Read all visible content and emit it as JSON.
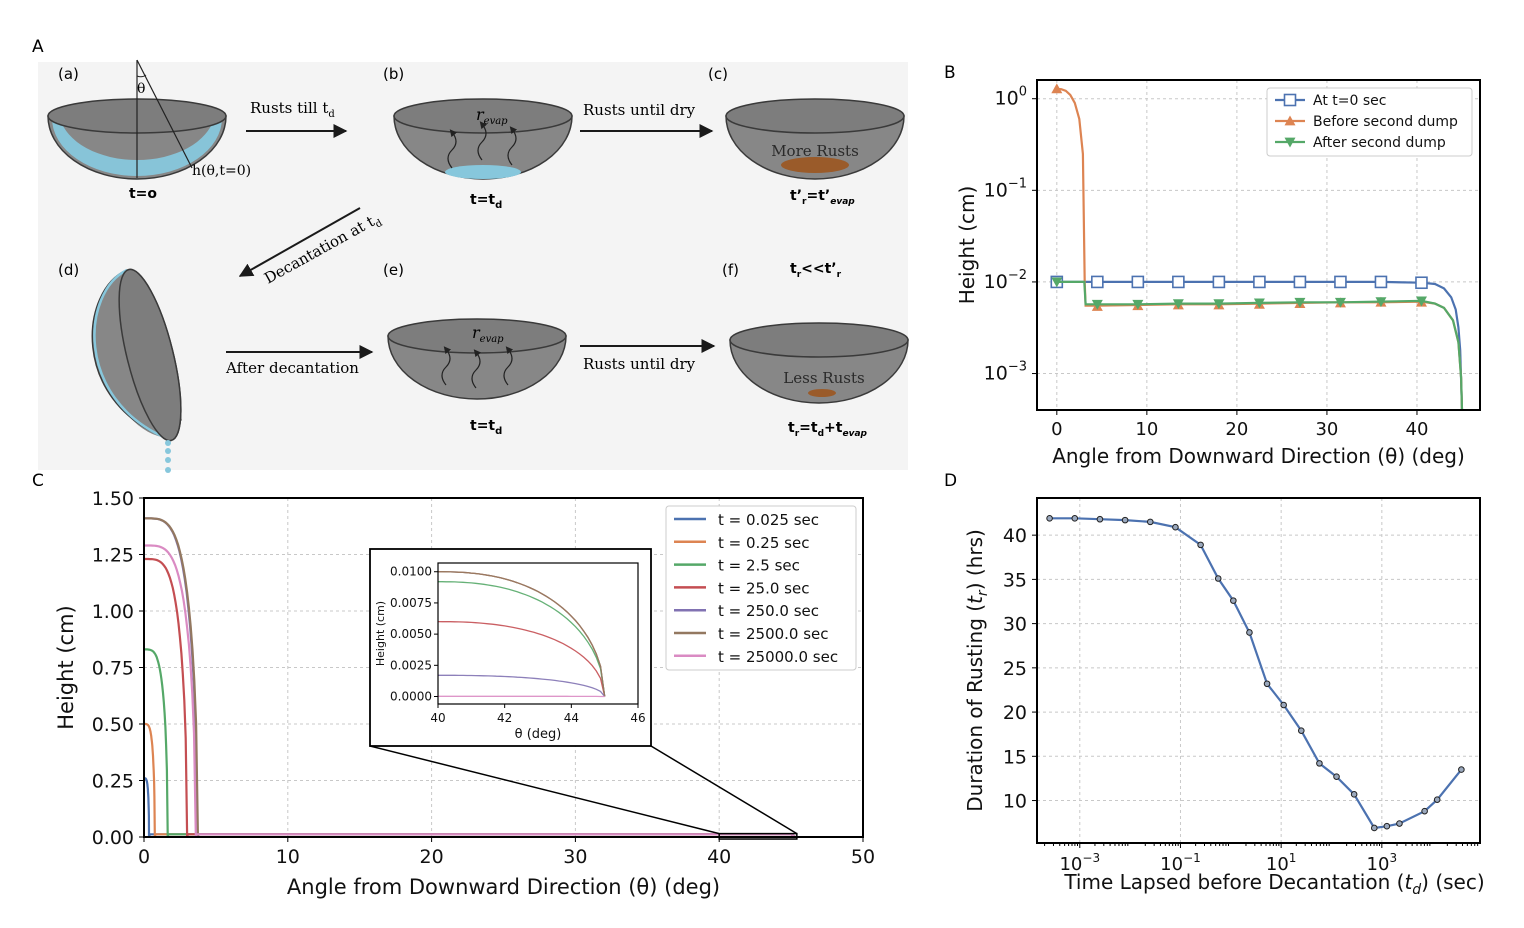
{
  "panels": {
    "A": {
      "letter": "A",
      "labels": {
        "a": "(a)",
        "b": "(b)",
        "c": "(c)",
        "d": "(d)",
        "e": "(e)",
        "f": "(f)"
      },
      "theta_symbol": "θ",
      "h_label": "h(θ,t=0)",
      "arrows": {
        "rusts_till": "Rusts till t",
        "rusts_till_sub": "d",
        "rusts_until_dry_1": "Rusts until dry",
        "decantation": "Decantation at t",
        "decantation_sub": "d",
        "after_decantation": "After decantation",
        "rusts_until_dry_2": "Rusts until dry"
      },
      "bowls": {
        "a_time": "t=o",
        "b_time_main": "t=t",
        "b_time_sub": "d",
        "b_inside_main": "r",
        "b_inside_sub": "evap",
        "c_inside": "More Rusts",
        "c_time_p1": "t’",
        "c_time_s1": "r",
        "c_time_p2": "=t’",
        "c_time_s2": "evap",
        "e_inside_main": "r",
        "e_inside_sub": "evap",
        "e_time_main": "t=t",
        "e_time_sub": "d",
        "f_compare_p1": "t",
        "f_compare_s1": "r",
        "f_compare_p2": "<<t’",
        "f_compare_s2": "r",
        "f_inside": "Less Rusts",
        "f_time_p1": "t",
        "f_time_s1": "r",
        "f_time_p2": "=t",
        "f_time_s2": "d",
        "f_time_p3": "+t",
        "f_time_s3": "evap"
      }
    },
    "B": {
      "letter": "B"
    },
    "C": {
      "letter": "C"
    },
    "D": {
      "letter": "D"
    }
  },
  "colors": {
    "blue": "#4c72b0",
    "orange": "#dd8452",
    "green": "#55a868",
    "red": "#c44e52",
    "purple": "#8172b2",
    "brown": "#937860",
    "pink": "#da8bc3",
    "water": "#87c7dc",
    "bowl": "#878787",
    "rust": "#9a5b2a"
  },
  "chart_data": [
    {
      "id": "B",
      "type": "line",
      "yscale": "log",
      "title": "",
      "xlabel": "Angle from Downward Direction (θ) (deg)",
      "ylabel": "Height (cm)",
      "xlim": [
        -2.2,
        47
      ],
      "ylim": [
        0.0004,
        1.6
      ],
      "xticks": [
        0,
        10,
        20,
        30,
        40
      ],
      "xtick_labels": [
        "0",
        "10",
        "20",
        "30",
        "40"
      ],
      "yticks": [
        1,
        0.1,
        0.01,
        0.001
      ],
      "ytick_labels": [
        {
          "base": "10",
          "exp": "0"
        },
        {
          "base": "10",
          "exp": "−1"
        },
        {
          "base": "10",
          "exp": "−2"
        },
        {
          "base": "10",
          "exp": "−3"
        }
      ],
      "legend_position": "top-right",
      "series": [
        {
          "name": "At t=0 sec",
          "color": "#4c72b0",
          "marker": "square",
          "x": [
            0,
            4.5,
            9,
            13.5,
            18,
            22.5,
            27,
            31.5,
            36,
            40.5,
            42,
            43,
            43.8,
            44.3,
            44.6,
            44.8,
            45
          ],
          "y": [
            0.01,
            0.01,
            0.01,
            0.01,
            0.01,
            0.01,
            0.01,
            0.01,
            0.01,
            0.0098,
            0.0095,
            0.0085,
            0.0068,
            0.005,
            0.0032,
            0.0018,
            0.0004
          ],
          "marker_x": [
            0,
            4.5,
            9,
            13.5,
            18,
            22.5,
            27,
            31.5,
            36,
            40.5
          ],
          "marker_y": [
            0.01,
            0.01,
            0.01,
            0.01,
            0.01,
            0.01,
            0.01,
            0.01,
            0.01,
            0.0098
          ]
        },
        {
          "name": "Before second dump",
          "color": "#dd8452",
          "marker": "triangle-up",
          "x": [
            0,
            0.5,
            1.0,
            1.5,
            2.0,
            2.5,
            2.9,
            3.1,
            3.2,
            4.5,
            9,
            13.5,
            18,
            22.5,
            27,
            31.5,
            36,
            40.5,
            42,
            43,
            44,
            44.6,
            44.9,
            45
          ],
          "y": [
            1.28,
            1.27,
            1.22,
            1.1,
            0.9,
            0.6,
            0.25,
            0.01,
            0.0055,
            0.0055,
            0.0056,
            0.0057,
            0.0057,
            0.0058,
            0.0059,
            0.006,
            0.006,
            0.0061,
            0.0058,
            0.0052,
            0.0038,
            0.0022,
            0.0009,
            0.0004
          ],
          "marker_x": [
            0,
            4.5,
            9,
            13.5,
            18,
            22.5,
            27,
            31.5,
            36,
            40.5
          ],
          "marker_y": [
            1.28,
            0.0054,
            0.0055,
            0.0056,
            0.0056,
            0.0057,
            0.0058,
            0.0059,
            0.006,
            0.006
          ]
        },
        {
          "name": "After second dump",
          "color": "#55a868",
          "marker": "triangle-down",
          "x": [
            0,
            3.05,
            3.2,
            4.5,
            9,
            13.5,
            18,
            22.5,
            27,
            31.5,
            36,
            40.5,
            42,
            43,
            44,
            44.6,
            44.9,
            45
          ],
          "y": [
            0.01,
            0.01,
            0.0057,
            0.0057,
            0.0057,
            0.0058,
            0.0058,
            0.0059,
            0.006,
            0.006,
            0.0061,
            0.0062,
            0.0058,
            0.0052,
            0.0038,
            0.0022,
            0.0009,
            0.0004
          ],
          "marker_x": [
            0,
            4.5,
            9,
            13.5,
            18,
            22.5,
            27,
            31.5,
            36,
            40.5
          ],
          "marker_y": [
            0.01,
            0.0057,
            0.0057,
            0.0058,
            0.0058,
            0.0059,
            0.006,
            0.006,
            0.0061,
            0.0062
          ]
        }
      ]
    },
    {
      "id": "C",
      "type": "line",
      "title": "",
      "xlabel": "Angle from Downward Direction (θ) (deg)",
      "ylabel": "Height (cm)",
      "xlim": [
        0,
        50
      ],
      "ylim": [
        0,
        1.5
      ],
      "xticks": [
        0,
        10,
        20,
        30,
        40,
        50
      ],
      "xtick_labels": [
        "0",
        "10",
        "20",
        "30",
        "40",
        "50"
      ],
      "yticks": [
        0,
        0.25,
        0.5,
        0.75,
        1.0,
        1.25,
        1.5
      ],
      "ytick_labels": [
        "0.00",
        "0.25",
        "0.50",
        "0.75",
        "1.00",
        "1.25",
        "1.50"
      ],
      "grid": true,
      "legend_position": "top-right",
      "series": [
        {
          "name": "t = 0.025 sec",
          "color": "#4c72b0",
          "h0": 0.26,
          "theta_end": 0.35
        },
        {
          "name": "t = 0.25 sec",
          "color": "#dd8452",
          "h0": 0.5,
          "theta_end": 0.75
        },
        {
          "name": "t = 2.5 sec",
          "color": "#55a868",
          "h0": 0.83,
          "theta_end": 1.65
        },
        {
          "name": "t = 25.0 sec",
          "color": "#c44e52",
          "h0": 1.23,
          "theta_end": 3.0
        },
        {
          "name": "t = 250.0 sec",
          "color": "#8172b2",
          "h0": 1.41,
          "theta_end": 3.7
        },
        {
          "name": "t = 2500.0 sec",
          "color": "#937860",
          "h0": 1.41,
          "theta_end": 3.75
        },
        {
          "name": "t = 25000.0 sec",
          "color": "#da8bc3",
          "h0": 1.29,
          "theta_end": 3.6
        }
      ],
      "inset": {
        "xlabel": "θ (deg)",
        "ylabel": "Height (cm)",
        "xlim": [
          40,
          46
        ],
        "ylim": [
          -0.0006,
          0.0107
        ],
        "xticks": [
          40,
          42,
          44,
          46
        ],
        "xtick_labels": [
          "40",
          "42",
          "44",
          "46"
        ],
        "yticks": [
          0,
          0.0025,
          0.005,
          0.0075,
          0.01
        ],
        "ytick_labels": [
          "0.0000",
          "0.0025",
          "0.0050",
          "0.0075",
          "0.0100"
        ],
        "zoom_box_x": [
          40,
          45.4
        ],
        "zoom_box_y": [
          -0.009,
          0.015
        ],
        "series": [
          {
            "name": "t = 0.025 sec",
            "color": "#4c72b0",
            "h40": 0.01
          },
          {
            "name": "t = 0.25 sec",
            "color": "#dd8452",
            "h40": 0.01
          },
          {
            "name": "t = 2.5 sec",
            "color": "#55a868",
            "h40": 0.0092
          },
          {
            "name": "t = 25.0 sec",
            "color": "#c44e52",
            "h40": 0.006
          },
          {
            "name": "t = 250.0 sec",
            "color": "#8172b2",
            "h40": 0.0017
          },
          {
            "name": "t = 2500.0 sec",
            "color": "#937860",
            "h40": 0.01
          },
          {
            "name": "t = 25000.0 sec",
            "color": "#da8bc3",
            "h40": 2e-05
          }
        ]
      }
    },
    {
      "id": "D",
      "type": "line",
      "xscale": "log",
      "title": "",
      "xlabel_parts": [
        "Time Lapsed before Decantation (",
        "t",
        "d",
        ") (sec)"
      ],
      "ylabel_parts": [
        "Duration of Rusting (",
        "t",
        "r",
        ") (hrs)"
      ],
      "xlim_exp": [
        -3.85,
        4.95
      ],
      "ylim": [
        5.2,
        44.2
      ],
      "xticks_exp": [
        -3,
        -1,
        1,
        3
      ],
      "xtick_labels": [
        {
          "base": "10",
          "exp": "−3"
        },
        {
          "base": "10",
          "exp": "−1"
        },
        {
          "base": "10",
          "exp": "1"
        },
        {
          "base": "10",
          "exp": "3"
        }
      ],
      "yticks": [
        10,
        15,
        20,
        25,
        30,
        35,
        40
      ],
      "ytick_labels": [
        "10",
        "15",
        "20",
        "25",
        "30",
        "35",
        "40"
      ],
      "grid": true,
      "series": [
        {
          "name": "Duration of Rusting",
          "color": "#4c72b0",
          "x_log10": [
            -3.6,
            -3.1,
            -2.6,
            -2.1,
            -1.6,
            -1.1,
            -0.6,
            -0.25,
            0.05,
            0.37,
            0.72,
            1.05,
            1.4,
            1.76,
            2.1,
            2.45,
            2.85,
            3.1,
            3.35,
            3.85,
            4.1,
            4.58
          ],
          "y": [
            41.9,
            41.9,
            41.8,
            41.7,
            41.5,
            40.9,
            38.9,
            35.1,
            32.6,
            29.0,
            23.2,
            20.8,
            17.9,
            14.2,
            12.7,
            10.7,
            6.9,
            7.1,
            7.4,
            8.8,
            10.1,
            13.5
          ]
        }
      ]
    }
  ]
}
